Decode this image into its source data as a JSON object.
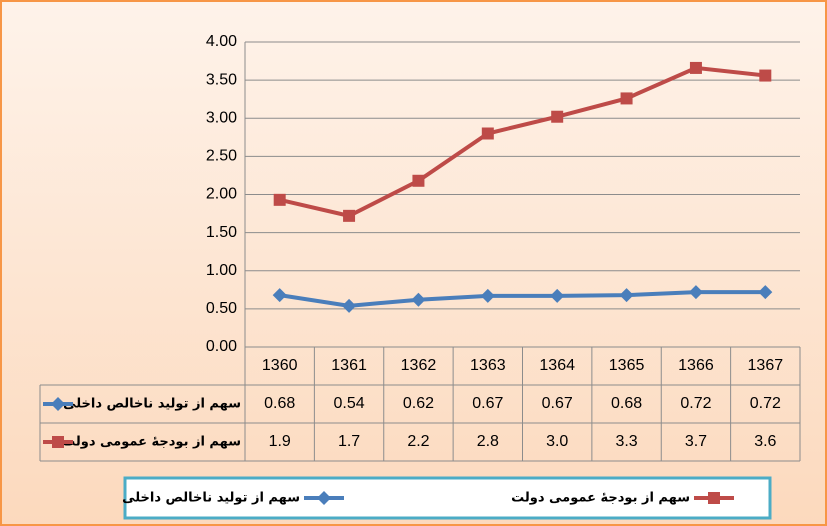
{
  "chart_data": {
    "type": "line",
    "categories": [
      "1360",
      "1361",
      "1362",
      "1363",
      "1364",
      "1365",
      "1366",
      "1367"
    ],
    "series": [
      {
        "name": "سهم از تولید ناخالص داخلی",
        "color": "#4a7ebb",
        "marker": "diamond",
        "values": [
          0.68,
          0.54,
          0.62,
          0.67,
          0.67,
          0.68,
          0.72,
          0.72
        ]
      },
      {
        "name": "سهم از بودجهٔ عمومی دولت",
        "color": "#be4b48",
        "marker": "square",
        "values": [
          1.93,
          1.72,
          2.18,
          2.8,
          3.02,
          3.26,
          3.66,
          3.56
        ],
        "value_labels": [
          "1.9",
          "1.7",
          "2.2",
          "2.8",
          "3.0",
          "3.3",
          "3.7",
          "3.6"
        ]
      }
    ],
    "ylim": [
      0,
      4
    ],
    "yticks": [
      {
        "value": 0,
        "label": "0.00"
      },
      {
        "value": 0.5,
        "label": "0.50"
      },
      {
        "value": 1,
        "label": "1.00"
      },
      {
        "value": 1.5,
        "label": "1.50"
      },
      {
        "value": 2,
        "label": "2.00"
      },
      {
        "value": 2.5,
        "label": "2.50"
      },
      {
        "value": 3,
        "label": "3.00"
      },
      {
        "value": 3.5,
        "label": "3.50"
      },
      {
        "value": 4,
        "label": "4.00"
      }
    ],
    "grid": true,
    "legend": "bottom",
    "data_table": true
  }
}
